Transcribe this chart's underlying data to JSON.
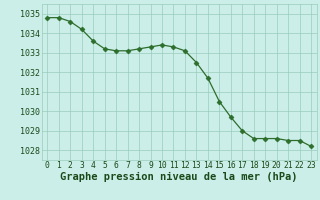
{
  "x": [
    0,
    1,
    2,
    3,
    4,
    5,
    6,
    7,
    8,
    9,
    10,
    11,
    12,
    13,
    14,
    15,
    16,
    17,
    18,
    19,
    20,
    21,
    22,
    23
  ],
  "y": [
    1034.8,
    1034.8,
    1034.6,
    1034.2,
    1033.6,
    1033.2,
    1033.1,
    1033.1,
    1033.2,
    1033.3,
    1033.4,
    1033.3,
    1033.1,
    1032.5,
    1031.7,
    1030.5,
    1029.7,
    1029.0,
    1028.6,
    1028.6,
    1028.6,
    1028.5,
    1028.5,
    1028.2
  ],
  "line_color": "#2d6e2d",
  "marker": "D",
  "marker_size": 2.5,
  "bg_color": "#cceee8",
  "grid_color": "#99ccbb",
  "title": "Graphe pression niveau de la mer (hPa)",
  "ylim": [
    1027.5,
    1035.5
  ],
  "xlim": [
    -0.5,
    23.5
  ],
  "yticks": [
    1028,
    1029,
    1030,
    1031,
    1032,
    1033,
    1034,
    1035
  ],
  "xticks": [
    0,
    1,
    2,
    3,
    4,
    5,
    6,
    7,
    8,
    9,
    10,
    11,
    12,
    13,
    14,
    15,
    16,
    17,
    18,
    19,
    20,
    21,
    22,
    23
  ],
  "title_fontsize": 7.5,
  "tick_fontsize": 6.0,
  "title_color": "#1a4a1a",
  "tick_color": "#1a4a1a",
  "line_width": 0.9
}
